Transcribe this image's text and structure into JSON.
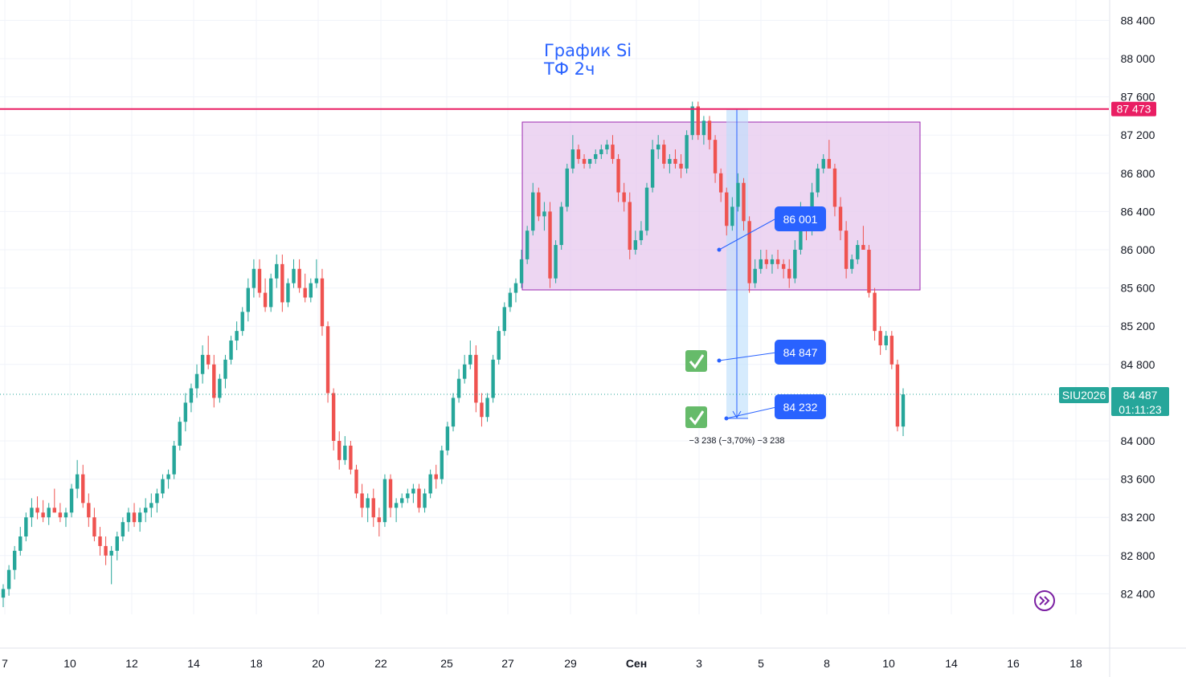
{
  "chart_data": {
    "type": "candlestick",
    "title_lines": [
      "График Si",
      "ТФ 2ч"
    ],
    "symbol": "SIU2026",
    "last_price": "84 487",
    "countdown": "01:11:23",
    "y_ticks": [
      {
        "value": 82400,
        "label": "82 400"
      },
      {
        "value": 82800,
        "label": "82 800"
      },
      {
        "value": 83200,
        "label": "83 200"
      },
      {
        "value": 83600,
        "label": "83 600"
      },
      {
        "value": 84000,
        "label": "84 000"
      },
      {
        "value": 84800,
        "label": "84 800"
      },
      {
        "value": 85200,
        "label": "85 200"
      },
      {
        "value": 85600,
        "label": "85 600"
      },
      {
        "value": 86000,
        "label": "86 000"
      },
      {
        "value": 86400,
        "label": "86 400"
      },
      {
        "value": 86800,
        "label": "86 800"
      },
      {
        "value": 87200,
        "label": "87 200"
      },
      {
        "value": 87600,
        "label": "87 600"
      },
      {
        "value": 88000,
        "label": "88 000"
      },
      {
        "value": 88400,
        "label": "88 400"
      }
    ],
    "x_ticks": [
      "7",
      "10",
      "12",
      "14",
      "18",
      "20",
      "22",
      "25",
      "27",
      "29",
      "Сен",
      "3",
      "5",
      "8",
      "10",
      "14",
      "16",
      "18"
    ],
    "resistance_level": {
      "value": 87473,
      "label": "87 473",
      "color": "#e91e63"
    },
    "range_box": {
      "top": 87330,
      "bottom": 85570,
      "color": "#e1bee7"
    },
    "targets": [
      {
        "label": "86 001",
        "value": 86001,
        "checked": false
      },
      {
        "label": "84 847",
        "value": 84847,
        "checked": true
      },
      {
        "label": "84 232",
        "value": 84232,
        "checked": true
      }
    ],
    "measurement": {
      "from": 87470,
      "to": 84232,
      "label": "−3 238 (−3,70%) −3 238"
    },
    "colors": {
      "up": "#26a69a",
      "down": "#ef5350",
      "accent": "#2962ff",
      "tag": "#2962ff",
      "last": "#26a69a"
    },
    "candles": [
      [
        82360,
        82500,
        82260,
        82450
      ],
      [
        82450,
        82700,
        82380,
        82650
      ],
      [
        82650,
        82900,
        82550,
        82850
      ],
      [
        82850,
        83100,
        82800,
        83000
      ],
      [
        83000,
        83250,
        82950,
        83200
      ],
      [
        83200,
        83400,
        83100,
        83300
      ],
      [
        83300,
        83420,
        83180,
        83250
      ],
      [
        83250,
        83380,
        83150,
        83200
      ],
      [
        83200,
        83350,
        83120,
        83300
      ],
      [
        83300,
        83500,
        83250,
        83250
      ],
      [
        83250,
        83350,
        83150,
        83200
      ],
      [
        83200,
        83300,
        83100,
        83250
      ],
      [
        83250,
        83550,
        83200,
        83500
      ],
      [
        83500,
        83800,
        83400,
        83650
      ],
      [
        83650,
        83750,
        83300,
        83350
      ],
      [
        83350,
        83450,
        83100,
        83200
      ],
      [
        83200,
        83300,
        82950,
        83000
      ],
      [
        83000,
        83100,
        82800,
        82900
      ],
      [
        82900,
        83000,
        82700,
        82800
      ],
      [
        82800,
        82900,
        82500,
        82850
      ],
      [
        82850,
        83050,
        82750,
        83000
      ],
      [
        83000,
        83200,
        82950,
        83150
      ],
      [
        83150,
        83300,
        83050,
        83250
      ],
      [
        83250,
        83350,
        83100,
        83150
      ],
      [
        83150,
        83300,
        83050,
        83250
      ],
      [
        83250,
        83400,
        83150,
        83300
      ],
      [
        83300,
        83450,
        83200,
        83350
      ],
      [
        83350,
        83500,
        83250,
        83450
      ],
      [
        83450,
        83650,
        83400,
        83600
      ],
      [
        83600,
        83700,
        83500,
        83650
      ],
      [
        83650,
        84000,
        83600,
        83950
      ],
      [
        83950,
        84250,
        83900,
        84200
      ],
      [
        84200,
        84500,
        84100,
        84400
      ],
      [
        84400,
        84600,
        84300,
        84550
      ],
      [
        84550,
        84800,
        84450,
        84700
      ],
      [
        84700,
        85000,
        84600,
        84900
      ],
      [
        84900,
        85100,
        84750,
        84800
      ],
      [
        84800,
        84900,
        84350,
        84450
      ],
      [
        84450,
        84700,
        84400,
        84650
      ],
      [
        84650,
        84900,
        84550,
        84850
      ],
      [
        84850,
        85100,
        84800,
        85050
      ],
      [
        85050,
        85250,
        84950,
        85150
      ],
      [
        85150,
        85400,
        85100,
        85350
      ],
      [
        85350,
        85700,
        85250,
        85600
      ],
      [
        85600,
        85900,
        85500,
        85800
      ],
      [
        85800,
        85900,
        85500,
        85550
      ],
      [
        85550,
        85700,
        85350,
        85400
      ],
      [
        85400,
        85750,
        85350,
        85700
      ],
      [
        85700,
        85950,
        85600,
        85850
      ],
      [
        85850,
        85950,
        85350,
        85450
      ],
      [
        85450,
        85700,
        85400,
        85650
      ],
      [
        85650,
        85900,
        85600,
        85800
      ],
      [
        85800,
        85900,
        85550,
        85600
      ],
      [
        85600,
        85750,
        85450,
        85500
      ],
      [
        85500,
        85700,
        85450,
        85650
      ],
      [
        85650,
        85900,
        85600,
        85700
      ],
      [
        85700,
        85800,
        85100,
        85200
      ],
      [
        85200,
        85250,
        84400,
        84500
      ],
      [
        84500,
        84550,
        83900,
        84000
      ],
      [
        84000,
        84100,
        83700,
        83800
      ],
      [
        83800,
        84050,
        83750,
        83950
      ],
      [
        83950,
        84000,
        83650,
        83700
      ],
      [
        83700,
        83750,
        83400,
        83450
      ],
      [
        83450,
        83550,
        83200,
        83300
      ],
      [
        83300,
        83450,
        83150,
        83400
      ],
      [
        83400,
        83500,
        83100,
        83200
      ],
      [
        83200,
        83300,
        83000,
        83150
      ],
      [
        83150,
        83650,
        83100,
        83600
      ],
      [
        83600,
        83650,
        83200,
        83300
      ],
      [
        83300,
        83400,
        83150,
        83350
      ],
      [
        83350,
        83450,
        83300,
        83400
      ],
      [
        83400,
        83500,
        83350,
        83450
      ],
      [
        83450,
        83550,
        83350,
        83500
      ],
      [
        83500,
        83550,
        83250,
        83300
      ],
      [
        83300,
        83500,
        83250,
        83450
      ],
      [
        83450,
        83700,
        83400,
        83650
      ],
      [
        83650,
        83750,
        83500,
        83600
      ],
      [
        83600,
        83950,
        83550,
        83900
      ],
      [
        83900,
        84200,
        83850,
        84150
      ],
      [
        84150,
        84500,
        84100,
        84450
      ],
      [
        84450,
        84750,
        84400,
        84650
      ],
      [
        84650,
        84900,
        84600,
        84800
      ],
      [
        84800,
        85050,
        84750,
        84900
      ],
      [
        84900,
        85000,
        84300,
        84400
      ],
      [
        84400,
        84500,
        84150,
        84250
      ],
      [
        84250,
        84500,
        84200,
        84450
      ],
      [
        84450,
        84900,
        84400,
        84850
      ],
      [
        84850,
        85200,
        84800,
        85150
      ],
      [
        85150,
        85450,
        85100,
        85400
      ],
      [
        85400,
        85600,
        85350,
        85550
      ],
      [
        85550,
        85700,
        85450,
        85650
      ],
      [
        85650,
        86000,
        85600,
        85900
      ],
      [
        85900,
        86250,
        85850,
        86200
      ],
      [
        86200,
        86700,
        86150,
        86600
      ],
      [
        86600,
        86650,
        86300,
        86350
      ],
      [
        86350,
        86500,
        86200,
        86400
      ],
      [
        86400,
        86500,
        85600,
        85700
      ],
      [
        85700,
        86100,
        85650,
        86050
      ],
      [
        86050,
        86500,
        86000,
        86450
      ],
      [
        86450,
        86900,
        86400,
        86850
      ],
      [
        86850,
        87200,
        86800,
        87050
      ],
      [
        87050,
        87100,
        86900,
        86950
      ],
      [
        86950,
        87000,
        86850,
        86900
      ],
      [
        86900,
        86950,
        86850,
        86950
      ],
      [
        86950,
        87050,
        86900,
        87000
      ],
      [
        87000,
        87100,
        86950,
        87050
      ],
      [
        87050,
        87150,
        87000,
        87100
      ],
      [
        87100,
        87200,
        86900,
        86950
      ],
      [
        86950,
        87000,
        86500,
        86600
      ],
      [
        86600,
        86700,
        86400,
        86500
      ],
      [
        86500,
        86600,
        85900,
        86000
      ],
      [
        86000,
        86200,
        85950,
        86100
      ],
      [
        86100,
        86300,
        86050,
        86200
      ],
      [
        86200,
        86700,
        86150,
        86650
      ],
      [
        86650,
        87150,
        86600,
        87050
      ],
      [
        87050,
        87200,
        86950,
        87100
      ],
      [
        87100,
        87150,
        86850,
        86900
      ],
      [
        86900,
        87000,
        86800,
        86950
      ],
      [
        86950,
        87050,
        86850,
        86900
      ],
      [
        86900,
        87000,
        86750,
        86850
      ],
      [
        86850,
        87250,
        86800,
        87200
      ],
      [
        87200,
        87550,
        87150,
        87500
      ],
      [
        87500,
        87550,
        87150,
        87200
      ],
      [
        87200,
        87400,
        87100,
        87350
      ],
      [
        87350,
        87400,
        87050,
        87150
      ],
      [
        87150,
        87200,
        86700,
        86800
      ],
      [
        86800,
        86850,
        86500,
        86600
      ],
      [
        86600,
        86650,
        86150,
        86250
      ],
      [
        86250,
        86550,
        86200,
        86450
      ],
      [
        86450,
        86800,
        86400,
        86700
      ],
      [
        86700,
        86750,
        86200,
        86300
      ],
      [
        86300,
        86350,
        85550,
        85650
      ],
      [
        85650,
        85900,
        85600,
        85800
      ],
      [
        85800,
        86000,
        85750,
        85900
      ],
      [
        85900,
        86000,
        85800,
        85850
      ],
      [
        85850,
        85950,
        85750,
        85900
      ],
      [
        85900,
        86000,
        85800,
        85850
      ],
      [
        85850,
        85900,
        85700,
        85800
      ],
      [
        85800,
        85900,
        85600,
        85700
      ],
      [
        85700,
        86100,
        85650,
        86000
      ],
      [
        86000,
        86500,
        85950,
        86400
      ],
      [
        86400,
        86450,
        86100,
        86200
      ],
      [
        86200,
        86700,
        86150,
        86600
      ],
      [
        86600,
        86900,
        86550,
        86850
      ],
      [
        86850,
        87000,
        86800,
        86950
      ],
      [
        86950,
        87150,
        86900,
        86850
      ],
      [
        86850,
        86900,
        86350,
        86450
      ],
      [
        86450,
        86550,
        86100,
        86200
      ],
      [
        86200,
        86300,
        85700,
        85800
      ],
      [
        85800,
        85950,
        85750,
        85900
      ],
      [
        85900,
        86100,
        85850,
        86050
      ],
      [
        86050,
        86250,
        86000,
        86000
      ],
      [
        86000,
        86050,
        85500,
        85550
      ],
      [
        85550,
        85600,
        85050,
        85150
      ],
      [
        85150,
        85200,
        84900,
        85000
      ],
      [
        85000,
        85150,
        84950,
        85100
      ],
      [
        85100,
        85150,
        84750,
        84800
      ],
      [
        84800,
        84850,
        84100,
        84150
      ],
      [
        84150,
        84550,
        84050,
        84487
      ]
    ],
    "candle_layout_note": ""
  }
}
